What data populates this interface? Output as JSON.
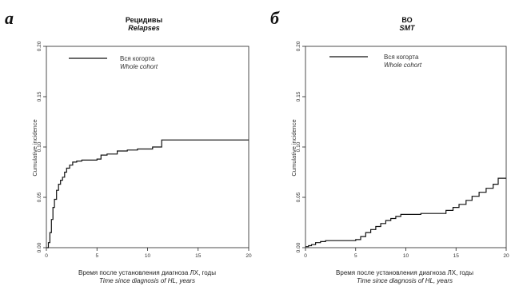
{
  "panels": [
    {
      "letter": "а",
      "title": "Рецидивы",
      "subtitle": "Relapses",
      "legend_main": "Вся когорта",
      "legend_sub": "Whole cohort",
      "xlabel_main": "Время после установления диагноза ЛХ, годы",
      "xlabel_sub": "Time since diagnosis of HL, years",
      "ylabel": "Cumulative incidence"
    },
    {
      "letter": "б",
      "title": "ВО",
      "subtitle": "SMT",
      "legend_main": "Вся когорта",
      "legend_sub": "Whole cohort",
      "xlabel_main": "Время после установления диагноза ЛХ, годы",
      "xlabel_sub": "Time since diagnosis of HL, years",
      "ylabel": "Cumulative incidence"
    }
  ],
  "chart_data": [
    {
      "type": "line",
      "step": true,
      "title": "Рецидивы",
      "subtitle": "Relapses",
      "xlabel": "Время после установления диагноза ЛХ, годы",
      "ylabel": "Cumulative incidence",
      "xlim": [
        0,
        20
      ],
      "ylim": [
        0,
        0.2
      ],
      "xticks": [
        "0",
        "5",
        "10",
        "15",
        "20"
      ],
      "yticks": [
        "0.00",
        "0.05",
        "0.10",
        "0.15",
        "0.20"
      ],
      "legend_position": "top-left",
      "series": [
        {
          "name": "Вся когорта",
          "x": [
            0.05,
            0.2,
            0.35,
            0.5,
            0.65,
            0.8,
            1.0,
            1.2,
            1.4,
            1.6,
            1.8,
            2.0,
            2.3,
            2.6,
            3.0,
            3.5,
            4.2,
            5.0,
            5.4,
            6.0,
            7.0,
            8.0,
            9.0,
            10.5,
            11.4,
            13.0,
            15.0,
            17.0,
            20.0
          ],
          "y": [
            0.0,
            0.005,
            0.015,
            0.028,
            0.04,
            0.048,
            0.057,
            0.063,
            0.067,
            0.07,
            0.075,
            0.079,
            0.082,
            0.085,
            0.086,
            0.087,
            0.087,
            0.088,
            0.092,
            0.093,
            0.096,
            0.097,
            0.098,
            0.1,
            0.107,
            0.107,
            0.107,
            0.107,
            0.107
          ]
        }
      ]
    },
    {
      "type": "line",
      "step": true,
      "title": "ВО",
      "subtitle": "SMT",
      "xlabel": "Время после установления диагноза ЛХ, годы",
      "ylabel": "Cumulative incidence",
      "xlim": [
        0,
        20
      ],
      "ylim": [
        0,
        0.2
      ],
      "xticks": [
        "0",
        "5",
        "10",
        "15",
        "20"
      ],
      "yticks": [
        "0.00",
        "0.05",
        "0.10",
        "0.15",
        "0.20"
      ],
      "legend_position": "top-left",
      "series": [
        {
          "name": "Вся когорта",
          "x": [
            0.0,
            0.3,
            0.6,
            1.0,
            1.5,
            2.0,
            3.0,
            4.0,
            5.0,
            5.5,
            6.0,
            6.5,
            7.0,
            7.5,
            8.0,
            8.5,
            9.0,
            9.5,
            10.5,
            11.5,
            13.0,
            14.0,
            14.7,
            15.3,
            16.0,
            16.6,
            17.3,
            18.0,
            18.7,
            19.2,
            20.0
          ],
          "y": [
            0.001,
            0.002,
            0.003,
            0.005,
            0.006,
            0.007,
            0.007,
            0.007,
            0.008,
            0.011,
            0.015,
            0.018,
            0.021,
            0.024,
            0.027,
            0.029,
            0.031,
            0.033,
            0.033,
            0.034,
            0.034,
            0.037,
            0.04,
            0.043,
            0.047,
            0.051,
            0.055,
            0.059,
            0.063,
            0.069,
            0.069
          ]
        }
      ]
    }
  ]
}
